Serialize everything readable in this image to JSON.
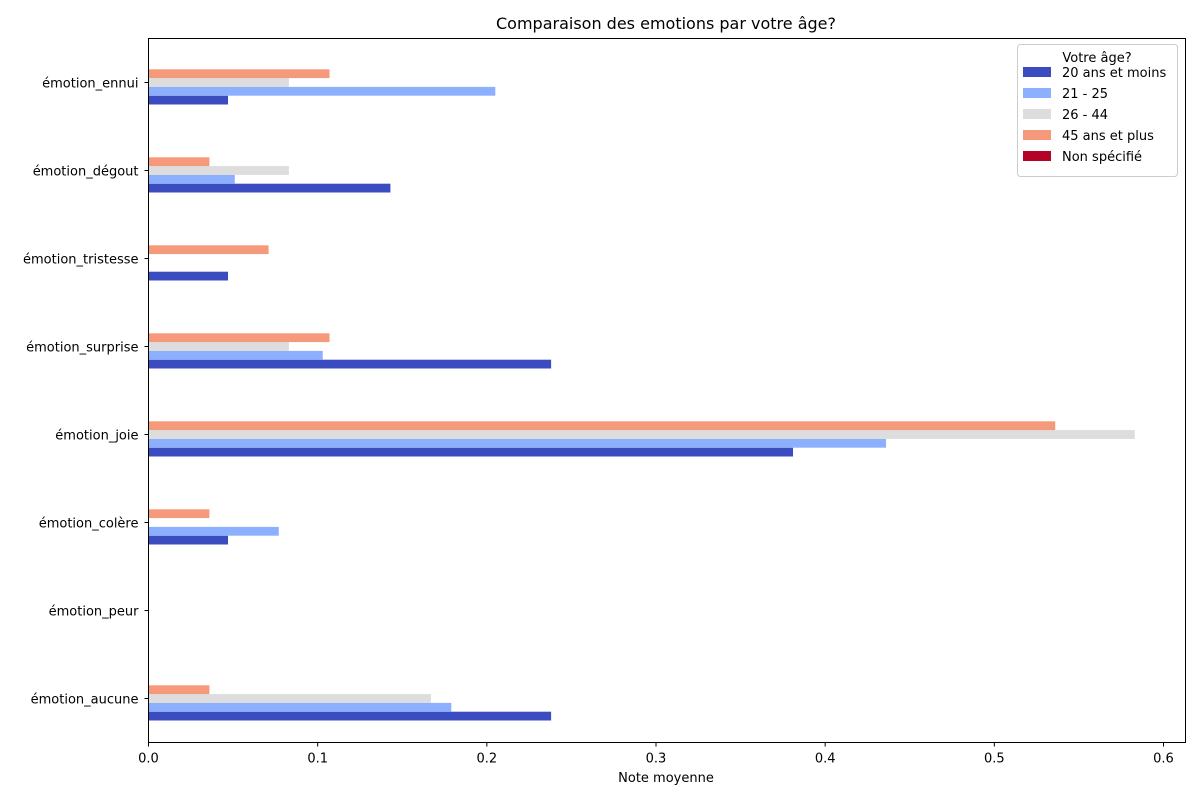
{
  "chart_data": {
    "type": "bar",
    "orientation": "horizontal",
    "title": "Comparaison des emotions par votre âge?",
    "xlabel": "Note moyenne",
    "ylabel": "",
    "categories": [
      "émotion_ennui",
      "émotion_dégout",
      "émotion_tristesse",
      "émotion_surprise",
      "émotion_joie",
      "émotion_colère",
      "émotion_peur",
      "émotion_aucune"
    ],
    "xlim": [
      0,
      0.613
    ],
    "xticks": [
      0.0,
      0.1,
      0.2,
      0.3,
      0.4,
      0.5,
      0.6
    ],
    "xtick_labels": [
      "0.0",
      "0.1",
      "0.2",
      "0.3",
      "0.4",
      "0.5",
      "0.6"
    ],
    "grid": false,
    "legend": {
      "title": "Votre âge?",
      "placement": "top-right"
    },
    "series": [
      {
        "name": "20 ans et moins",
        "color": "#3b4cc0",
        "values": [
          0.047,
          0.143,
          0.047,
          0.238,
          0.381,
          0.047,
          0.0,
          0.238
        ]
      },
      {
        "name": "21 - 25",
        "color": "#8db0fe",
        "values": [
          0.205,
          0.051,
          0.0,
          0.103,
          0.436,
          0.077,
          0.0,
          0.179
        ]
      },
      {
        "name": "26 - 44",
        "color": "#dddddd",
        "values": [
          0.083,
          0.083,
          0.0,
          0.083,
          0.583,
          0.0,
          0.0,
          0.167
        ]
      },
      {
        "name": "45 ans et plus",
        "color": "#f49a7b",
        "values": [
          0.107,
          0.036,
          0.071,
          0.107,
          0.536,
          0.036,
          0.0,
          0.036
        ]
      },
      {
        "name": "Non spécifié",
        "color": "#b40426",
        "values": [
          0.0,
          0.0,
          0.0,
          0.0,
          0.0,
          0.0,
          0.0,
          0.0
        ]
      }
    ]
  }
}
